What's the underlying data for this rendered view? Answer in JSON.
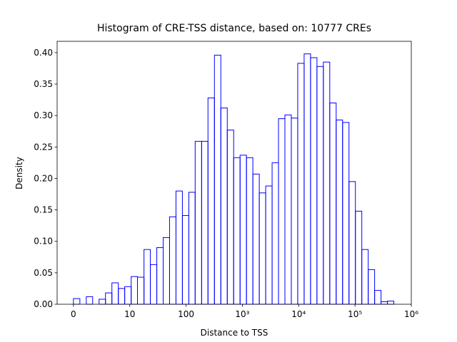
{
  "chart_data": {
    "type": "histogram",
    "title": "Histogram of CRE-TSS distance, based on: 10777 CREs",
    "x_label": "Distance to TSS",
    "y_label": "Density",
    "x_scale": "symlog",
    "linthresh": 10,
    "color": "#0000ff",
    "bins": [
      0,
      1.14,
      2.28,
      3.41,
      4.55,
      5.69,
      6.83,
      7.97,
      9.1,
      10.6,
      13.7,
      17.9,
      23.2,
      30.2,
      39.2,
      50.9,
      66.2,
      86,
      112,
      145,
      189,
      245,
      319,
      414,
      539,
      700,
      910,
      1182,
      1536,
      1996,
      2594,
      3372,
      4381,
      5693,
      7399,
      9616,
      12497,
      16239,
      21104,
      27428,
      35645,
      46324,
      60203,
      78240,
      101672,
      132130,
      171710,
      223153,
      290000,
      376800,
      489800
    ],
    "values": [
      0.009,
      0,
      0.012,
      0,
      0.008,
      0.018,
      0.034,
      0.025,
      0.028,
      0.044,
      0.043,
      0.087,
      0.063,
      0.09,
      0.106,
      0.139,
      0.18,
      0.141,
      0.178,
      0.259,
      0.259,
      0.328,
      0.396,
      0.312,
      0.277,
      0.233,
      0.237,
      0.233,
      0.207,
      0.177,
      0.188,
      0.225,
      0.295,
      0.301,
      0.296,
      0.383,
      0.398,
      0.392,
      0.378,
      0.385,
      0.32,
      0.293,
      0.289,
      0.195,
      0.148,
      0.087,
      0.055,
      0.022,
      0.004,
      0.005
    ],
    "xlim": [
      -2.9,
      1000000
    ],
    "xticks": [
      0,
      10,
      100,
      {
        "value": 1000,
        "label": "10³"
      },
      {
        "value": 10000,
        "label": "10⁴"
      },
      {
        "value": 100000,
        "label": "10⁵"
      },
      {
        "value": 1000000,
        "label": "10⁶"
      }
    ],
    "ylim": [
      0,
      0.418
    ],
    "yticks": [
      {
        "value": 0,
        "label": "0.00"
      },
      {
        "value": 0.05,
        "label": "0.05"
      },
      {
        "value": 0.1,
        "label": "0.10"
      },
      {
        "value": 0.15,
        "label": "0.15"
      },
      {
        "value": 0.2,
        "label": "0.20"
      },
      {
        "value": 0.25,
        "label": "0.25"
      },
      {
        "value": 0.3,
        "label": "0.30"
      },
      {
        "value": 0.35,
        "label": "0.35"
      },
      {
        "value": 0.4,
        "label": "0.40"
      }
    ]
  }
}
